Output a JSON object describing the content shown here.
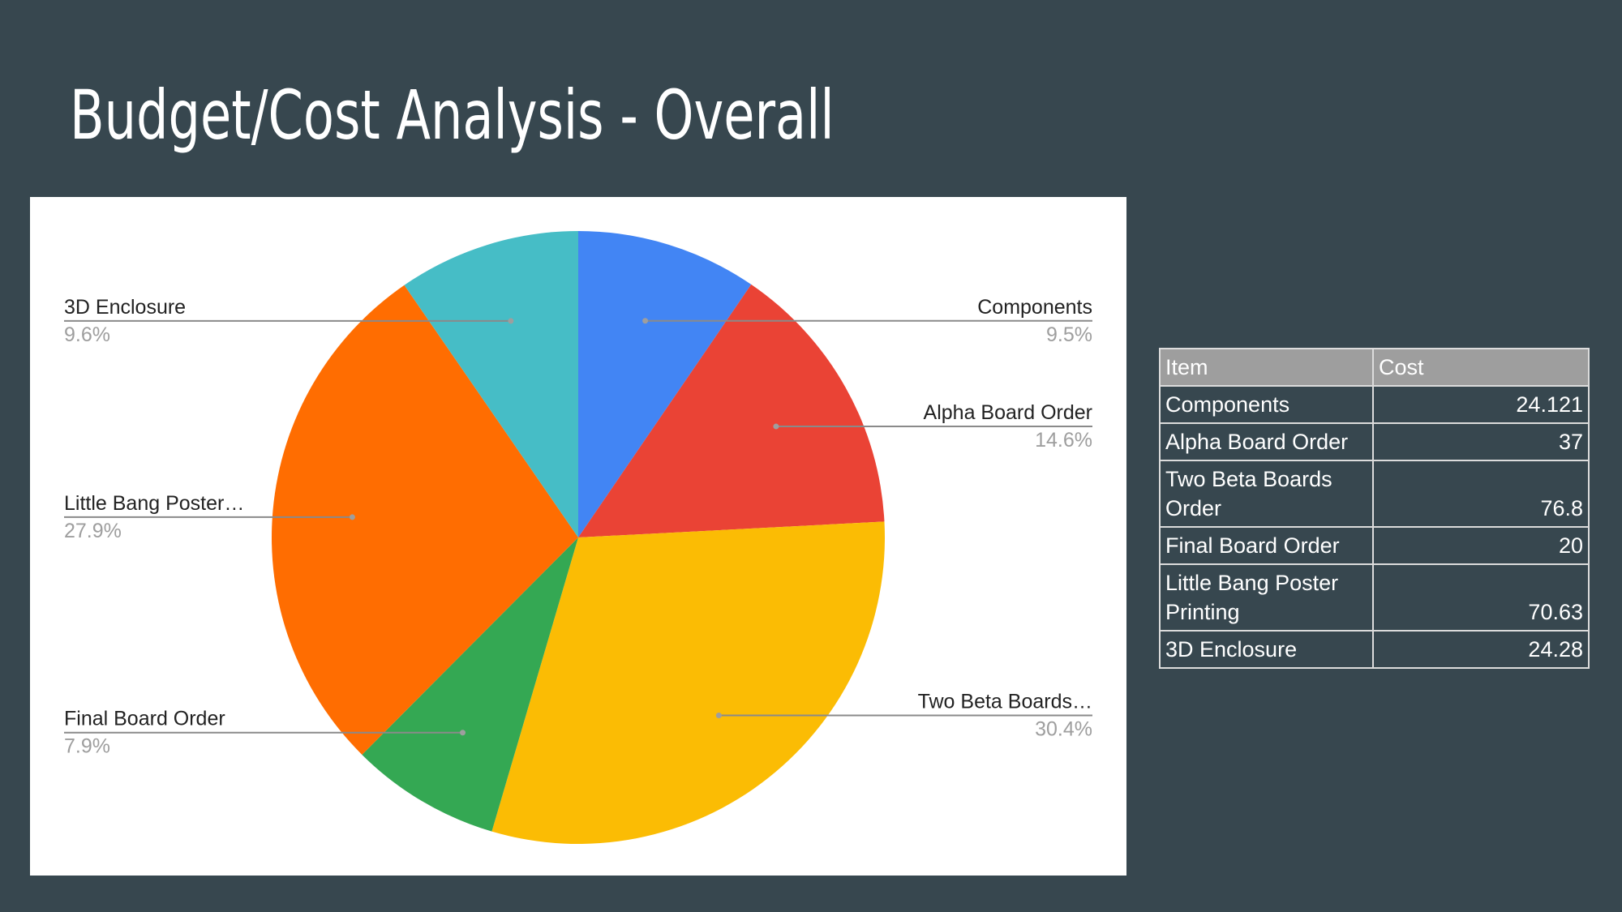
{
  "slide": {
    "title": "Budget/Cost Analysis - Overall"
  },
  "colors": {
    "background": "#37474f",
    "table_header": "#9e9e9e"
  },
  "chart_data": {
    "type": "pie",
    "slices": [
      {
        "label": "Components",
        "display_label": "Components",
        "value": 24.121,
        "percent_label": "9.5%",
        "color": "#4285f4"
      },
      {
        "label": "Alpha Board Order",
        "display_label": "Alpha Board Order",
        "value": 37,
        "percent_label": "14.6%",
        "color": "#ea4335"
      },
      {
        "label": "Two Beta Boards Order",
        "display_label": "Two Beta Boards…",
        "value": 76.8,
        "percent_label": "30.4%",
        "color": "#fbbc04"
      },
      {
        "label": "Final Board Order",
        "display_label": "Final Board Order",
        "value": 20,
        "percent_label": "7.9%",
        "color": "#34a853"
      },
      {
        "label": "Little Bang Poster Printing",
        "display_label": "Little Bang Poster…",
        "value": 70.63,
        "percent_label": "27.9%",
        "color": "#ff6d01"
      },
      {
        "label": "3D Enclosure",
        "display_label": "3D Enclosure",
        "value": 24.28,
        "percent_label": "9.6%",
        "color": "#46bdc6"
      }
    ]
  },
  "table": {
    "headers": [
      "Item",
      "Cost"
    ],
    "rows": [
      {
        "item": "Components",
        "cost": "24.121"
      },
      {
        "item": "Alpha Board Order",
        "cost": "37"
      },
      {
        "item": "Two Beta Boards Order",
        "cost": "76.8"
      },
      {
        "item": "Final Board Order",
        "cost": "20"
      },
      {
        "item": "Little Bang Poster Printing",
        "cost": "70.63"
      },
      {
        "item": "3D Enclosure",
        "cost": "24.28"
      }
    ]
  }
}
